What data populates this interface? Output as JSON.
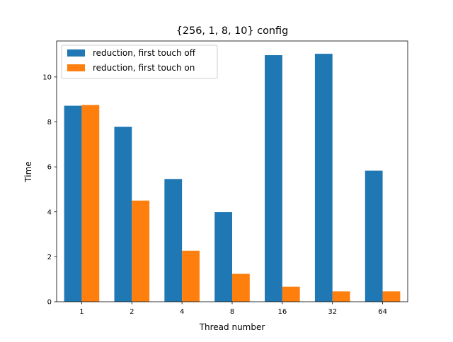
{
  "chart_data": {
    "type": "bar",
    "title": "{256, 1, 8, 10} config",
    "xlabel": "Thread number",
    "ylabel": "Time",
    "categories": [
      "1",
      "2",
      "4",
      "8",
      "16",
      "32",
      "64"
    ],
    "ylim": [
      0,
      11.6
    ],
    "yticks": [
      0,
      2,
      4,
      6,
      8,
      10
    ],
    "grid": false,
    "legend_position": "upper-left",
    "series": [
      {
        "name": "reduction, first touch off",
        "color": "#1f77b4",
        "values": [
          8.72,
          7.78,
          5.46,
          3.99,
          10.97,
          11.03,
          5.83
        ]
      },
      {
        "name": "reduction, first touch on",
        "color": "#ff7f0e",
        "values": [
          8.75,
          4.5,
          2.27,
          1.24,
          0.67,
          0.46,
          0.46
        ]
      }
    ]
  }
}
